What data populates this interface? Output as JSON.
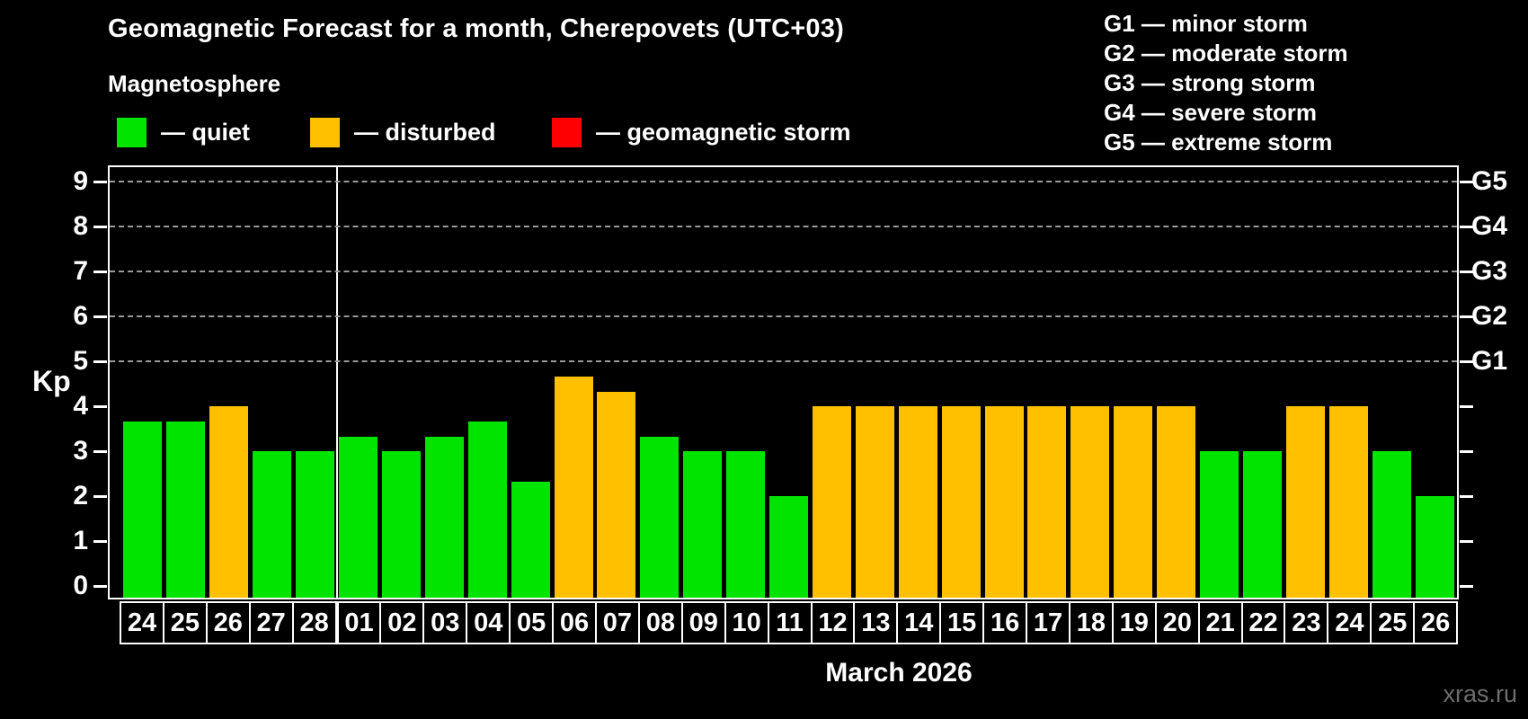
{
  "header": {
    "title": "Geomagnetic Forecast for a month, Cherepovets (UTC+03)",
    "subtitle": "Magnetosphere"
  },
  "legend": {
    "items": [
      {
        "key": "quiet",
        "label": "— quiet",
        "color": "#00e400"
      },
      {
        "key": "disturbed",
        "label": "— disturbed",
        "color": "#ffc000"
      },
      {
        "key": "storm",
        "label": "— geomagnetic storm",
        "color": "#ff0000"
      }
    ]
  },
  "storm_scale_legend": {
    "items": [
      "G1 — minor storm",
      "G2 — moderate storm",
      "G3 — strong storm",
      "G4 — severe storm",
      "G5 — extreme storm"
    ]
  },
  "chart_data": {
    "type": "bar",
    "title": "Geomagnetic Forecast for a month, Cherepovets (UTC+03)",
    "ylabel": "Kp",
    "xlabel": "March 2026",
    "ylim": [
      0,
      9
    ],
    "yticks": [
      0,
      1,
      2,
      3,
      4,
      5,
      6,
      7,
      8,
      9
    ],
    "gridlines_at": [
      5,
      6,
      7,
      8,
      9
    ],
    "grid": true,
    "right_axis_labels": [
      {
        "label": "G1",
        "kp": 5
      },
      {
        "label": "G2",
        "kp": 6
      },
      {
        "label": "G3",
        "kp": 7
      },
      {
        "label": "G4",
        "kp": 8
      },
      {
        "label": "G5",
        "kp": 9
      }
    ],
    "month_separator_after_index": 4,
    "categories": [
      "24",
      "25",
      "26",
      "27",
      "28",
      "01",
      "02",
      "03",
      "04",
      "05",
      "06",
      "07",
      "08",
      "09",
      "10",
      "11",
      "12",
      "13",
      "14",
      "15",
      "16",
      "17",
      "18",
      "19",
      "20",
      "21",
      "22",
      "23",
      "24",
      "25",
      "26"
    ],
    "values": [
      3.67,
      3.67,
      4,
      3,
      3,
      3.33,
      3,
      3.33,
      3.67,
      2.33,
      4.67,
      4.33,
      3.33,
      3,
      3,
      2,
      4,
      4,
      4,
      4,
      4,
      4,
      4,
      4,
      4,
      3,
      3,
      4,
      4,
      3,
      2
    ],
    "statuses": [
      "quiet",
      "quiet",
      "disturbed",
      "quiet",
      "quiet",
      "quiet",
      "quiet",
      "quiet",
      "quiet",
      "quiet",
      "disturbed",
      "disturbed",
      "quiet",
      "quiet",
      "quiet",
      "quiet",
      "disturbed",
      "disturbed",
      "disturbed",
      "disturbed",
      "disturbed",
      "disturbed",
      "disturbed",
      "disturbed",
      "disturbed",
      "quiet",
      "quiet",
      "disturbed",
      "disturbed",
      "quiet",
      "quiet"
    ],
    "colors": {
      "quiet": "#00e400",
      "disturbed": "#ffc000",
      "storm": "#ff0000",
      "grid": "#9a9a9a",
      "axis": "#ffffff",
      "background": "#000000"
    }
  },
  "footer": {
    "watermark": "xras.ru"
  }
}
